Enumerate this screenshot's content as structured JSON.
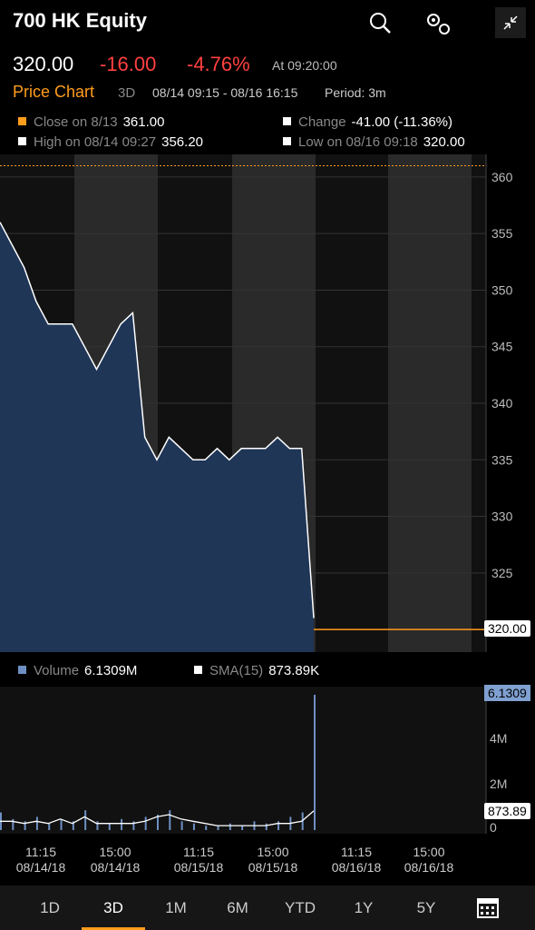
{
  "header": {
    "title": "700 HK Equity",
    "icons": [
      "search-icon",
      "settings-gears-icon",
      "collapse-icon"
    ]
  },
  "quote": {
    "price": "320.00",
    "change": "-16.00",
    "change_pct": "-4.76%",
    "as_of": "At 09:20:00"
  },
  "subheader": {
    "title": "Price Chart",
    "range_label": "3D",
    "date_range": "08/14 09:15 - 08/16 16:15",
    "period": "Period: 3m"
  },
  "stats": {
    "close_label": "Close on 8/13",
    "close_value": "361.00",
    "change_label": "Change",
    "change_value": "-41.00 (-11.36%)",
    "high_label": "High on 08/14 09:27",
    "high_value": "356.20",
    "low_label": "Low on 08/16 09:18",
    "low_value": "320.00"
  },
  "volume_legend": {
    "volume_label": "Volume",
    "volume_value": "6.1309M",
    "sma_label": "SMA(15)",
    "sma_value": "873.89K"
  },
  "price_axis": {
    "ticks": [
      "360",
      "355",
      "350",
      "345",
      "340",
      "335",
      "330",
      "325"
    ],
    "last_tag": "320.00"
  },
  "volume_axis": {
    "ticks": [
      "4M",
      "2M",
      "0"
    ],
    "tag_top": "6.1309",
    "tag_sma": "873.89"
  },
  "x_axis": [
    "11:15\n08/14/18",
    "15:00\n08/14/18",
    "11:15\n08/15/18",
    "15:00\n08/15/18",
    "11:15\n08/16/18",
    "15:00\n08/16/18"
  ],
  "tabs": [
    {
      "label": "1D"
    },
    {
      "label": "3D",
      "active": true
    },
    {
      "label": "1M"
    },
    {
      "label": "6M"
    },
    {
      "label": "YTD"
    },
    {
      "label": "1Y"
    },
    {
      "label": "5Y"
    }
  ],
  "calendar_icon": "calendar-icon",
  "colors": {
    "accent": "#ff9d1c",
    "negative": "#ff4040",
    "area": "#1f3657",
    "line": "#ffffff"
  },
  "chart_data": [
    {
      "type": "area",
      "x": [
        0,
        1,
        2,
        3,
        4,
        5,
        6,
        7,
        8,
        9,
        10,
        11,
        12,
        13,
        14,
        15,
        16,
        17,
        18,
        19,
        20,
        21,
        22,
        23,
        24,
        25,
        26,
        27,
        28,
        29,
        30,
        31,
        32,
        33,
        34,
        35,
        36,
        37,
        38,
        39,
        40
      ],
      "y": [
        356,
        354,
        352,
        349,
        347,
        347,
        347,
        345,
        343,
        345,
        347,
        348,
        337,
        335,
        337,
        336,
        335,
        335,
        336,
        335,
        336,
        336,
        336,
        337,
        336,
        336,
        321,
        320,
        320,
        320,
        320,
        320,
        320,
        320,
        320,
        320,
        320,
        320,
        320,
        320,
        320
      ],
      "reference_line": 361,
      "ylim": [
        318,
        362
      ]
    },
    {
      "type": "bar",
      "series": [
        {
          "name": "Volume",
          "values": [
            0.8,
            0.5,
            0.4,
            0.6,
            0.3,
            0.5,
            0.4,
            0.9,
            0.4,
            0.3,
            0.5,
            0.4,
            0.6,
            0.7,
            0.9,
            0.4,
            0.3,
            0.2,
            0.2,
            0.3,
            0.2,
            0.4,
            0.3,
            0.4,
            0.6,
            0.8,
            6.13
          ]
        },
        {
          "name": "SMA(15)",
          "values": [
            0.4,
            0.4,
            0.3,
            0.4,
            0.3,
            0.5,
            0.3,
            0.6,
            0.3,
            0.3,
            0.3,
            0.3,
            0.4,
            0.6,
            0.7,
            0.5,
            0.4,
            0.3,
            0.2,
            0.2,
            0.2,
            0.2,
            0.2,
            0.3,
            0.3,
            0.4,
            0.87
          ]
        }
      ],
      "ylim": [
        0,
        6.5
      ]
    }
  ]
}
